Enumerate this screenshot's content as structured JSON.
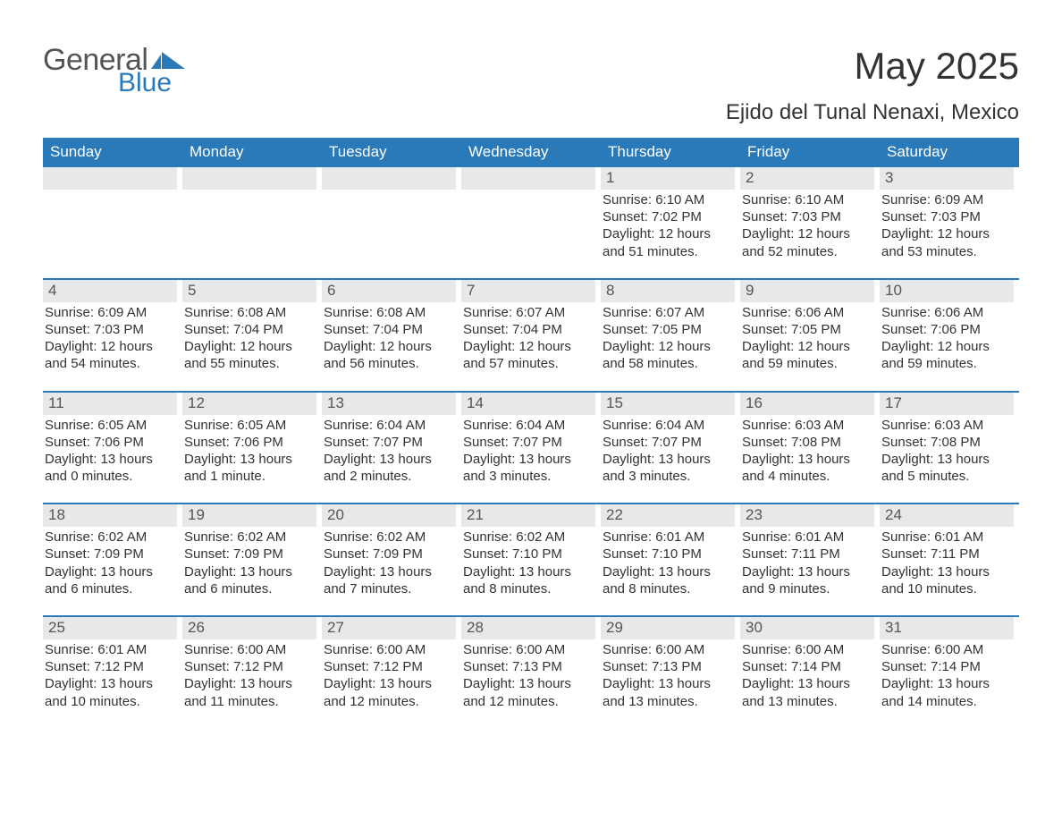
{
  "logo": {
    "word1": "General",
    "word2": "Blue",
    "grayColor": "#545454",
    "blueColor": "#2a7ab9"
  },
  "title": "May 2025",
  "location": "Ejido del Tunal Nenaxi, Mexico",
  "colors": {
    "headerBlue": "#2a7ab9",
    "rowDivider": "#2a7ab9",
    "dayNumBg": "#e8e8e8",
    "dayNumFg": "#555555",
    "bodyText": "#333333",
    "white": "#ffffff"
  },
  "daysOfWeek": [
    "Sunday",
    "Monday",
    "Tuesday",
    "Wednesday",
    "Thursday",
    "Friday",
    "Saturday"
  ],
  "weeks": [
    [
      null,
      null,
      null,
      null,
      {
        "n": "1",
        "sunrise": "Sunrise: 6:10 AM",
        "sunset": "Sunset: 7:02 PM",
        "daylight": "Daylight: 12 hours and 51 minutes."
      },
      {
        "n": "2",
        "sunrise": "Sunrise: 6:10 AM",
        "sunset": "Sunset: 7:03 PM",
        "daylight": "Daylight: 12 hours and 52 minutes."
      },
      {
        "n": "3",
        "sunrise": "Sunrise: 6:09 AM",
        "sunset": "Sunset: 7:03 PM",
        "daylight": "Daylight: 12 hours and 53 minutes."
      }
    ],
    [
      {
        "n": "4",
        "sunrise": "Sunrise: 6:09 AM",
        "sunset": "Sunset: 7:03 PM",
        "daylight": "Daylight: 12 hours and 54 minutes."
      },
      {
        "n": "5",
        "sunrise": "Sunrise: 6:08 AM",
        "sunset": "Sunset: 7:04 PM",
        "daylight": "Daylight: 12 hours and 55 minutes."
      },
      {
        "n": "6",
        "sunrise": "Sunrise: 6:08 AM",
        "sunset": "Sunset: 7:04 PM",
        "daylight": "Daylight: 12 hours and 56 minutes."
      },
      {
        "n": "7",
        "sunrise": "Sunrise: 6:07 AM",
        "sunset": "Sunset: 7:04 PM",
        "daylight": "Daylight: 12 hours and 57 minutes."
      },
      {
        "n": "8",
        "sunrise": "Sunrise: 6:07 AM",
        "sunset": "Sunset: 7:05 PM",
        "daylight": "Daylight: 12 hours and 58 minutes."
      },
      {
        "n": "9",
        "sunrise": "Sunrise: 6:06 AM",
        "sunset": "Sunset: 7:05 PM",
        "daylight": "Daylight: 12 hours and 59 minutes."
      },
      {
        "n": "10",
        "sunrise": "Sunrise: 6:06 AM",
        "sunset": "Sunset: 7:06 PM",
        "daylight": "Daylight: 12 hours and 59 minutes."
      }
    ],
    [
      {
        "n": "11",
        "sunrise": "Sunrise: 6:05 AM",
        "sunset": "Sunset: 7:06 PM",
        "daylight": "Daylight: 13 hours and 0 minutes."
      },
      {
        "n": "12",
        "sunrise": "Sunrise: 6:05 AM",
        "sunset": "Sunset: 7:06 PM",
        "daylight": "Daylight: 13 hours and 1 minute."
      },
      {
        "n": "13",
        "sunrise": "Sunrise: 6:04 AM",
        "sunset": "Sunset: 7:07 PM",
        "daylight": "Daylight: 13 hours and 2 minutes."
      },
      {
        "n": "14",
        "sunrise": "Sunrise: 6:04 AM",
        "sunset": "Sunset: 7:07 PM",
        "daylight": "Daylight: 13 hours and 3 minutes."
      },
      {
        "n": "15",
        "sunrise": "Sunrise: 6:04 AM",
        "sunset": "Sunset: 7:07 PM",
        "daylight": "Daylight: 13 hours and 3 minutes."
      },
      {
        "n": "16",
        "sunrise": "Sunrise: 6:03 AM",
        "sunset": "Sunset: 7:08 PM",
        "daylight": "Daylight: 13 hours and 4 minutes."
      },
      {
        "n": "17",
        "sunrise": "Sunrise: 6:03 AM",
        "sunset": "Sunset: 7:08 PM",
        "daylight": "Daylight: 13 hours and 5 minutes."
      }
    ],
    [
      {
        "n": "18",
        "sunrise": "Sunrise: 6:02 AM",
        "sunset": "Sunset: 7:09 PM",
        "daylight": "Daylight: 13 hours and 6 minutes."
      },
      {
        "n": "19",
        "sunrise": "Sunrise: 6:02 AM",
        "sunset": "Sunset: 7:09 PM",
        "daylight": "Daylight: 13 hours and 6 minutes."
      },
      {
        "n": "20",
        "sunrise": "Sunrise: 6:02 AM",
        "sunset": "Sunset: 7:09 PM",
        "daylight": "Daylight: 13 hours and 7 minutes."
      },
      {
        "n": "21",
        "sunrise": "Sunrise: 6:02 AM",
        "sunset": "Sunset: 7:10 PM",
        "daylight": "Daylight: 13 hours and 8 minutes."
      },
      {
        "n": "22",
        "sunrise": "Sunrise: 6:01 AM",
        "sunset": "Sunset: 7:10 PM",
        "daylight": "Daylight: 13 hours and 8 minutes."
      },
      {
        "n": "23",
        "sunrise": "Sunrise: 6:01 AM",
        "sunset": "Sunset: 7:11 PM",
        "daylight": "Daylight: 13 hours and 9 minutes."
      },
      {
        "n": "24",
        "sunrise": "Sunrise: 6:01 AM",
        "sunset": "Sunset: 7:11 PM",
        "daylight": "Daylight: 13 hours and 10 minutes."
      }
    ],
    [
      {
        "n": "25",
        "sunrise": "Sunrise: 6:01 AM",
        "sunset": "Sunset: 7:12 PM",
        "daylight": "Daylight: 13 hours and 10 minutes."
      },
      {
        "n": "26",
        "sunrise": "Sunrise: 6:00 AM",
        "sunset": "Sunset: 7:12 PM",
        "daylight": "Daylight: 13 hours and 11 minutes."
      },
      {
        "n": "27",
        "sunrise": "Sunrise: 6:00 AM",
        "sunset": "Sunset: 7:12 PM",
        "daylight": "Daylight: 13 hours and 12 minutes."
      },
      {
        "n": "28",
        "sunrise": "Sunrise: 6:00 AM",
        "sunset": "Sunset: 7:13 PM",
        "daylight": "Daylight: 13 hours and 12 minutes."
      },
      {
        "n": "29",
        "sunrise": "Sunrise: 6:00 AM",
        "sunset": "Sunset: 7:13 PM",
        "daylight": "Daylight: 13 hours and 13 minutes."
      },
      {
        "n": "30",
        "sunrise": "Sunrise: 6:00 AM",
        "sunset": "Sunset: 7:14 PM",
        "daylight": "Daylight: 13 hours and 13 minutes."
      },
      {
        "n": "31",
        "sunrise": "Sunrise: 6:00 AM",
        "sunset": "Sunset: 7:14 PM",
        "daylight": "Daylight: 13 hours and 14 minutes."
      }
    ]
  ]
}
